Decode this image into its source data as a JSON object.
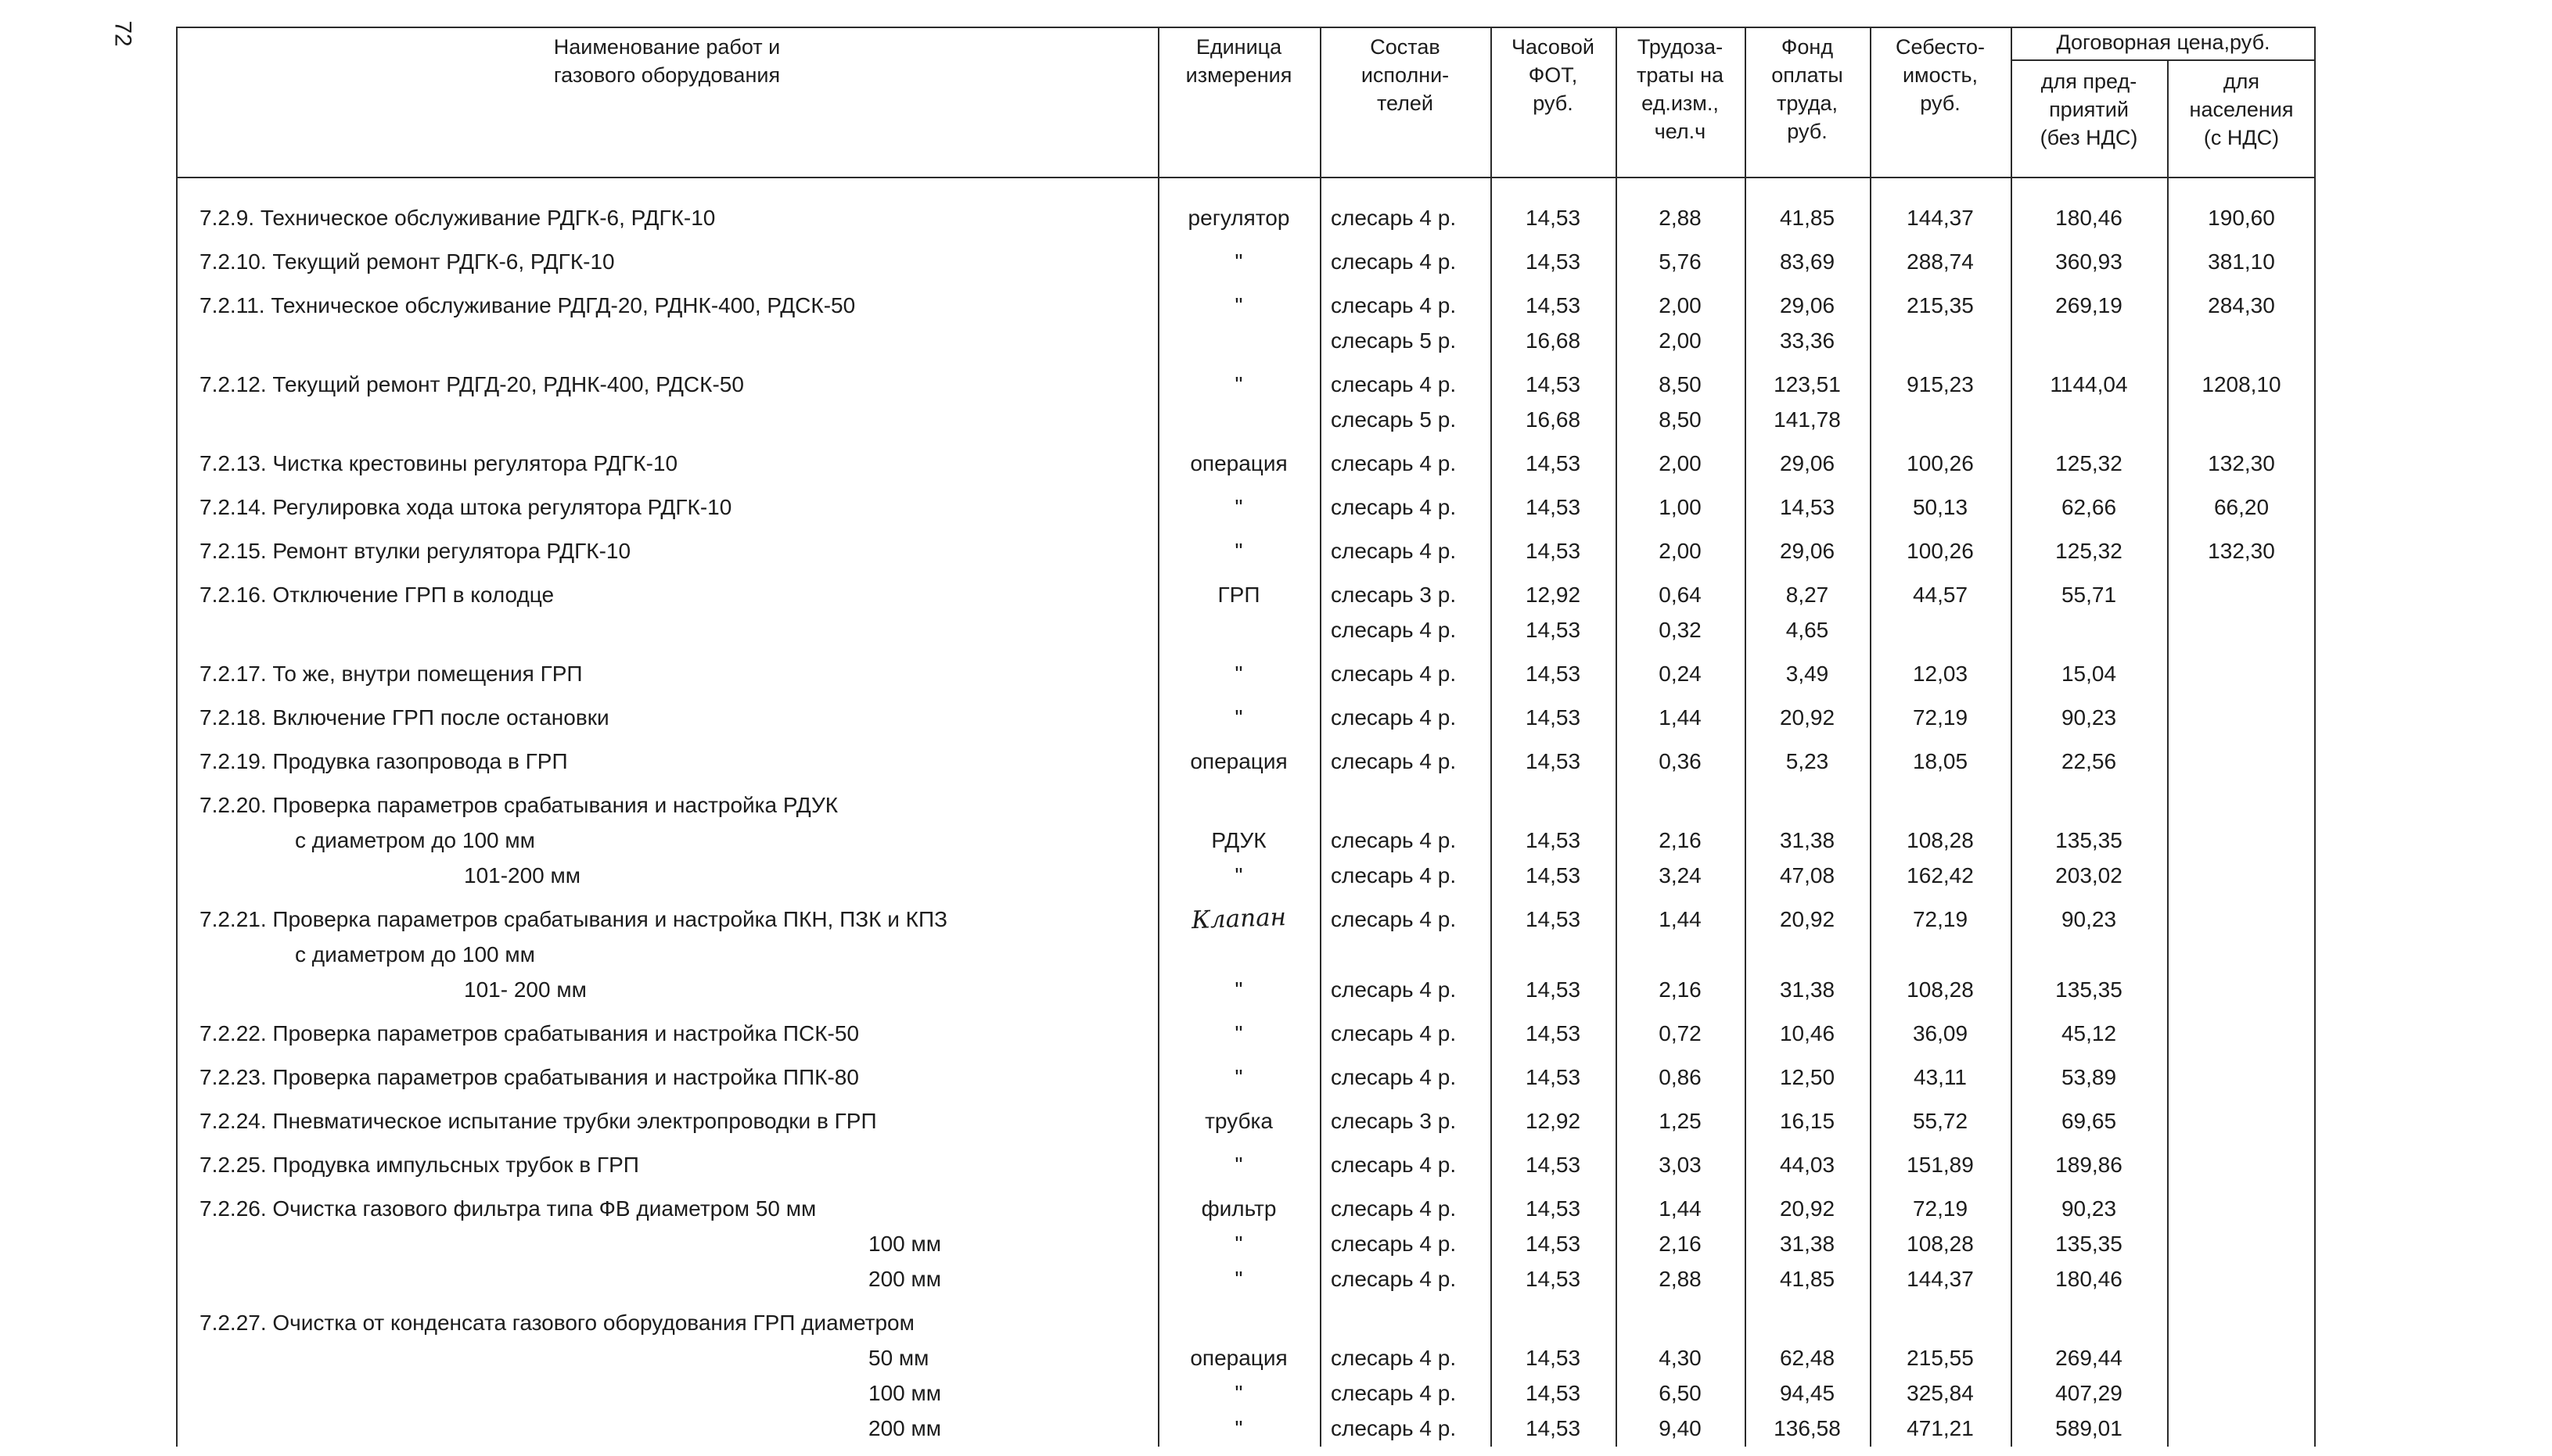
{
  "page_number": "72",
  "colors": {
    "ink": "#1c1c1c",
    "line": "#2b2b2b",
    "paper": "#ffffff"
  },
  "table": {
    "headers": {
      "work": "Наименование работ и\nгазового оборудования",
      "unit": "Единица\nизмерения",
      "crew": "Состав\nисполни-\nтелей",
      "fot": "Часовой\nФОТ,\nруб.",
      "labor": "Трудоза-\nтраты на\nед.изм.,\nчел.ч",
      "fund": "Фонд\nоплаты\nтруда,\nруб.",
      "cost": "Себесто-\nимость,\nруб.",
      "contract_group": "Договорная цена,руб.",
      "enterprise": "для пред-\nприятий\n(без НДС)",
      "population": "для\nнаселения\n(с НДС)"
    },
    "rows": [
      {
        "lines": [
          {
            "work": "7.2.9.  Техническое обслуживание РДГК-6, РДГК-10",
            "unit": "регулятор",
            "crew": "слесарь 4 р.",
            "fot": "14,53",
            "labor": "2,88",
            "fund": "41,85",
            "cost": "144,37",
            "ent": "180,46",
            "pop": "190,60"
          }
        ]
      },
      {
        "lines": [
          {
            "work": "7.2.10. Текущий ремонт РДГК-6, РДГК-10",
            "unit": "\"",
            "crew": "слесарь 4 р.",
            "fot": "14,53",
            "labor": "5,76",
            "fund": "83,69",
            "cost": "288,74",
            "ent": "360,93",
            "pop": "381,10"
          }
        ]
      },
      {
        "lines": [
          {
            "work": "7.2.11. Техническое обслуживание РДГД-20,  РДНК-400, РДСК-50",
            "unit": "\"",
            "crew": "слесарь 4 р.",
            "fot": "14,53",
            "labor": "2,00",
            "fund": "29,06",
            "cost": "215,35",
            "ent": "269,19",
            "pop": "284,30"
          },
          {
            "crew": "слесарь 5 р.",
            "fot": "16,68",
            "labor": "2,00",
            "fund": "33,36"
          }
        ]
      },
      {
        "lines": [
          {
            "work": "7.2.12. Текущий ремонт  РДГД-20, РДНК-400,  РДСК-50",
            "unit": "\"",
            "crew": "слесарь 4 р.",
            "fot": "14,53",
            "labor": "8,50",
            "fund": "123,51",
            "cost": "915,23",
            "ent": "1144,04",
            "pop": "1208,10"
          },
          {
            "crew": "слесарь 5 р.",
            "fot": "16,68",
            "labor": "8,50",
            "fund": "141,78"
          }
        ]
      },
      {
        "lines": [
          {
            "work": "7.2.13. Чистка крестовины регулятора РДГК-10",
            "unit": "операция",
            "crew": "слесарь 4 р.",
            "fot": "14,53",
            "labor": "2,00",
            "fund": "29,06",
            "cost": "100,26",
            "ent": "125,32",
            "pop": "132,30"
          }
        ]
      },
      {
        "lines": [
          {
            "work": "7.2.14. Регулировка хода штока регулятора РДГК-10",
            "unit": "\"",
            "crew": "слесарь 4 р.",
            "fot": "14,53",
            "labor": "1,00",
            "fund": "14,53",
            "cost": "50,13",
            "ent": "62,66",
            "pop": "66,20"
          }
        ]
      },
      {
        "lines": [
          {
            "work": "7.2.15. Ремонт втулки регулятора РДГК-10",
            "unit": "\"",
            "crew": "слесарь 4 р.",
            "fot": "14,53",
            "labor": "2,00",
            "fund": "29,06",
            "cost": "100,26",
            "ent": "125,32",
            "pop": "132,30"
          }
        ]
      },
      {
        "lines": [
          {
            "work": "7.2.16. Отключение  ГРП  в  колодце",
            "unit": "ГРП",
            "crew": "слесарь 3 р.",
            "fot": "12,92",
            "labor": "0,64",
            "fund": "8,27",
            "cost": "44,57",
            "ent": "55,71"
          },
          {
            "crew": "слесарь 4 р.",
            "fot": "14,53",
            "labor": "0,32",
            "fund": "4,65"
          }
        ]
      },
      {
        "lines": [
          {
            "work": "7.2.17. То же,  внутри  помещения ГРП",
            "unit": "\"",
            "crew": "слесарь 4 р.",
            "fot": "14,53",
            "labor": "0,24",
            "fund": "3,49",
            "cost": "12,03",
            "ent": "15,04"
          }
        ]
      },
      {
        "lines": [
          {
            "work": "7.2.18. Включение  ГРП после  остановки",
            "unit": "\"",
            "crew": "слесарь 4 р.",
            "fot": "14,53",
            "labor": "1,44",
            "fund": "20,92",
            "cost": "72,19",
            "ent": "90,23"
          }
        ]
      },
      {
        "lines": [
          {
            "work": "7.2.19. Продувка газопровода в  ГРП",
            "unit": "операция",
            "crew": "слесарь 4 р.",
            "fot": "14,53",
            "labor": "0,36",
            "fund": "5,23",
            "cost": "18,05",
            "ent": "22,56"
          }
        ]
      },
      {
        "lines": [
          {
            "work": "7.2.20. Проверка параметров срабатывания и настройка РДУК"
          },
          {
            "work": "с  диаметром до 100 мм",
            "indent": 1,
            "unit": "РДУК",
            "crew": "слесарь 4 р.",
            "fot": "14,53",
            "labor": "2,16",
            "fund": "31,38",
            "cost": "108,28",
            "ent": "135,35"
          },
          {
            "work": "101-200 мм",
            "indent": 2,
            "unit": "\"",
            "crew": "слесарь 4 р.",
            "fot": "14,53",
            "labor": "3,24",
            "fund": "47,08",
            "cost": "162,42",
            "ent": "203,02"
          }
        ]
      },
      {
        "lines": [
          {
            "work": "7.2.21. Проверка параметров срабатывания и настройка ПКН, ПЗК и КПЗ",
            "unit": "Клапан",
            "unit_hand": true,
            "crew": "слесарь 4 р.",
            "fot": "14,53",
            "labor": "1,44",
            "fund": "20,92",
            "cost": "72,19",
            "ent": "90,23"
          },
          {
            "work": "с диаметром до 100 мм",
            "indent": 1
          },
          {
            "work": "101- 200 мм",
            "indent": 2,
            "unit": "\"",
            "crew": "слесарь 4 р.",
            "fot": "14,53",
            "labor": "2,16",
            "fund": "31,38",
            "cost": "108,28",
            "ent": "135,35"
          }
        ]
      },
      {
        "lines": [
          {
            "work": "7.2.22. Проверка параметров срабатывания и настройка   ПСК-50",
            "unit": "\"",
            "crew": "слесарь 4 р.",
            "fot": "14,53",
            "labor": "0,72",
            "fund": "10,46",
            "cost": "36,09",
            "ent": "45,12"
          }
        ]
      },
      {
        "lines": [
          {
            "work": "7.2.23. Проверка параметров срабатывания и настройка   ППК-80",
            "unit": "\"",
            "crew": "слесарь 4 р.",
            "fot": "14,53",
            "labor": "0,86",
            "fund": "12,50",
            "cost": "43,11",
            "ent": "53,89"
          }
        ]
      },
      {
        "lines": [
          {
            "work": "7.2.24. Пневматическое испытание трубки электропроводки в ГРП",
            "unit": "трубка",
            "crew": "слесарь 3 р.",
            "fot": "12,92",
            "labor": "1,25",
            "fund": "16,15",
            "cost": "55,72",
            "ent": "69,65"
          }
        ]
      },
      {
        "lines": [
          {
            "work": "7.2.25. Продувка импульсных трубок в  ГРП",
            "unit": "\"",
            "crew": "слесарь 4 р.",
            "fot": "14,53",
            "labor": "3,03",
            "fund": "44,03",
            "cost": "151,89",
            "ent": "189,86"
          }
        ]
      },
      {
        "lines": [
          {
            "work": "7.2.26. Очистка газового фильтра  типа ФВ диаметром  50 мм",
            "unit": "фильтр",
            "crew": "слесарь 4 р.",
            "fot": "14,53",
            "labor": "1,44",
            "fund": "20,92",
            "cost": "72,19",
            "ent": "90,23"
          },
          {
            "work": "100 мм",
            "indent": 3,
            "unit": "\"",
            "crew": "слесарь 4 р.",
            "fot": "14,53",
            "labor": "2,16",
            "fund": "31,38",
            "cost": "108,28",
            "ent": "135,35"
          },
          {
            "work": "200 мм",
            "indent": 3,
            "unit": "\"",
            "crew": "слесарь 4 р.",
            "fot": "14,53",
            "labor": "2,88",
            "fund": "41,85",
            "cost": "144,37",
            "ent": "180,46"
          }
        ]
      },
      {
        "lines": [
          {
            "work": "7.2.27. Очистка от конденсата газового оборудования ГРП диаметром"
          },
          {
            "work": "50 мм",
            "indent": 3,
            "unit": "операция",
            "crew": "слесарь 4 р.",
            "fot": "14,53",
            "labor": "4,30",
            "fund": "62,48",
            "cost": "215,55",
            "ent": "269,44"
          },
          {
            "work": "100 мм",
            "indent": 3,
            "unit": "\"",
            "crew": "слесарь 4 р.",
            "fot": "14,53",
            "labor": "6,50",
            "fund": "94,45",
            "cost": "325,84",
            "ent": "407,29"
          },
          {
            "work": "200 мм",
            "indent": 3,
            "unit": "\"",
            "crew": "слесарь 4 р.",
            "fot": "14,53",
            "labor": "9,40",
            "fund": "136,58",
            "cost": "471,21",
            "ent": "589,01"
          }
        ]
      }
    ]
  }
}
